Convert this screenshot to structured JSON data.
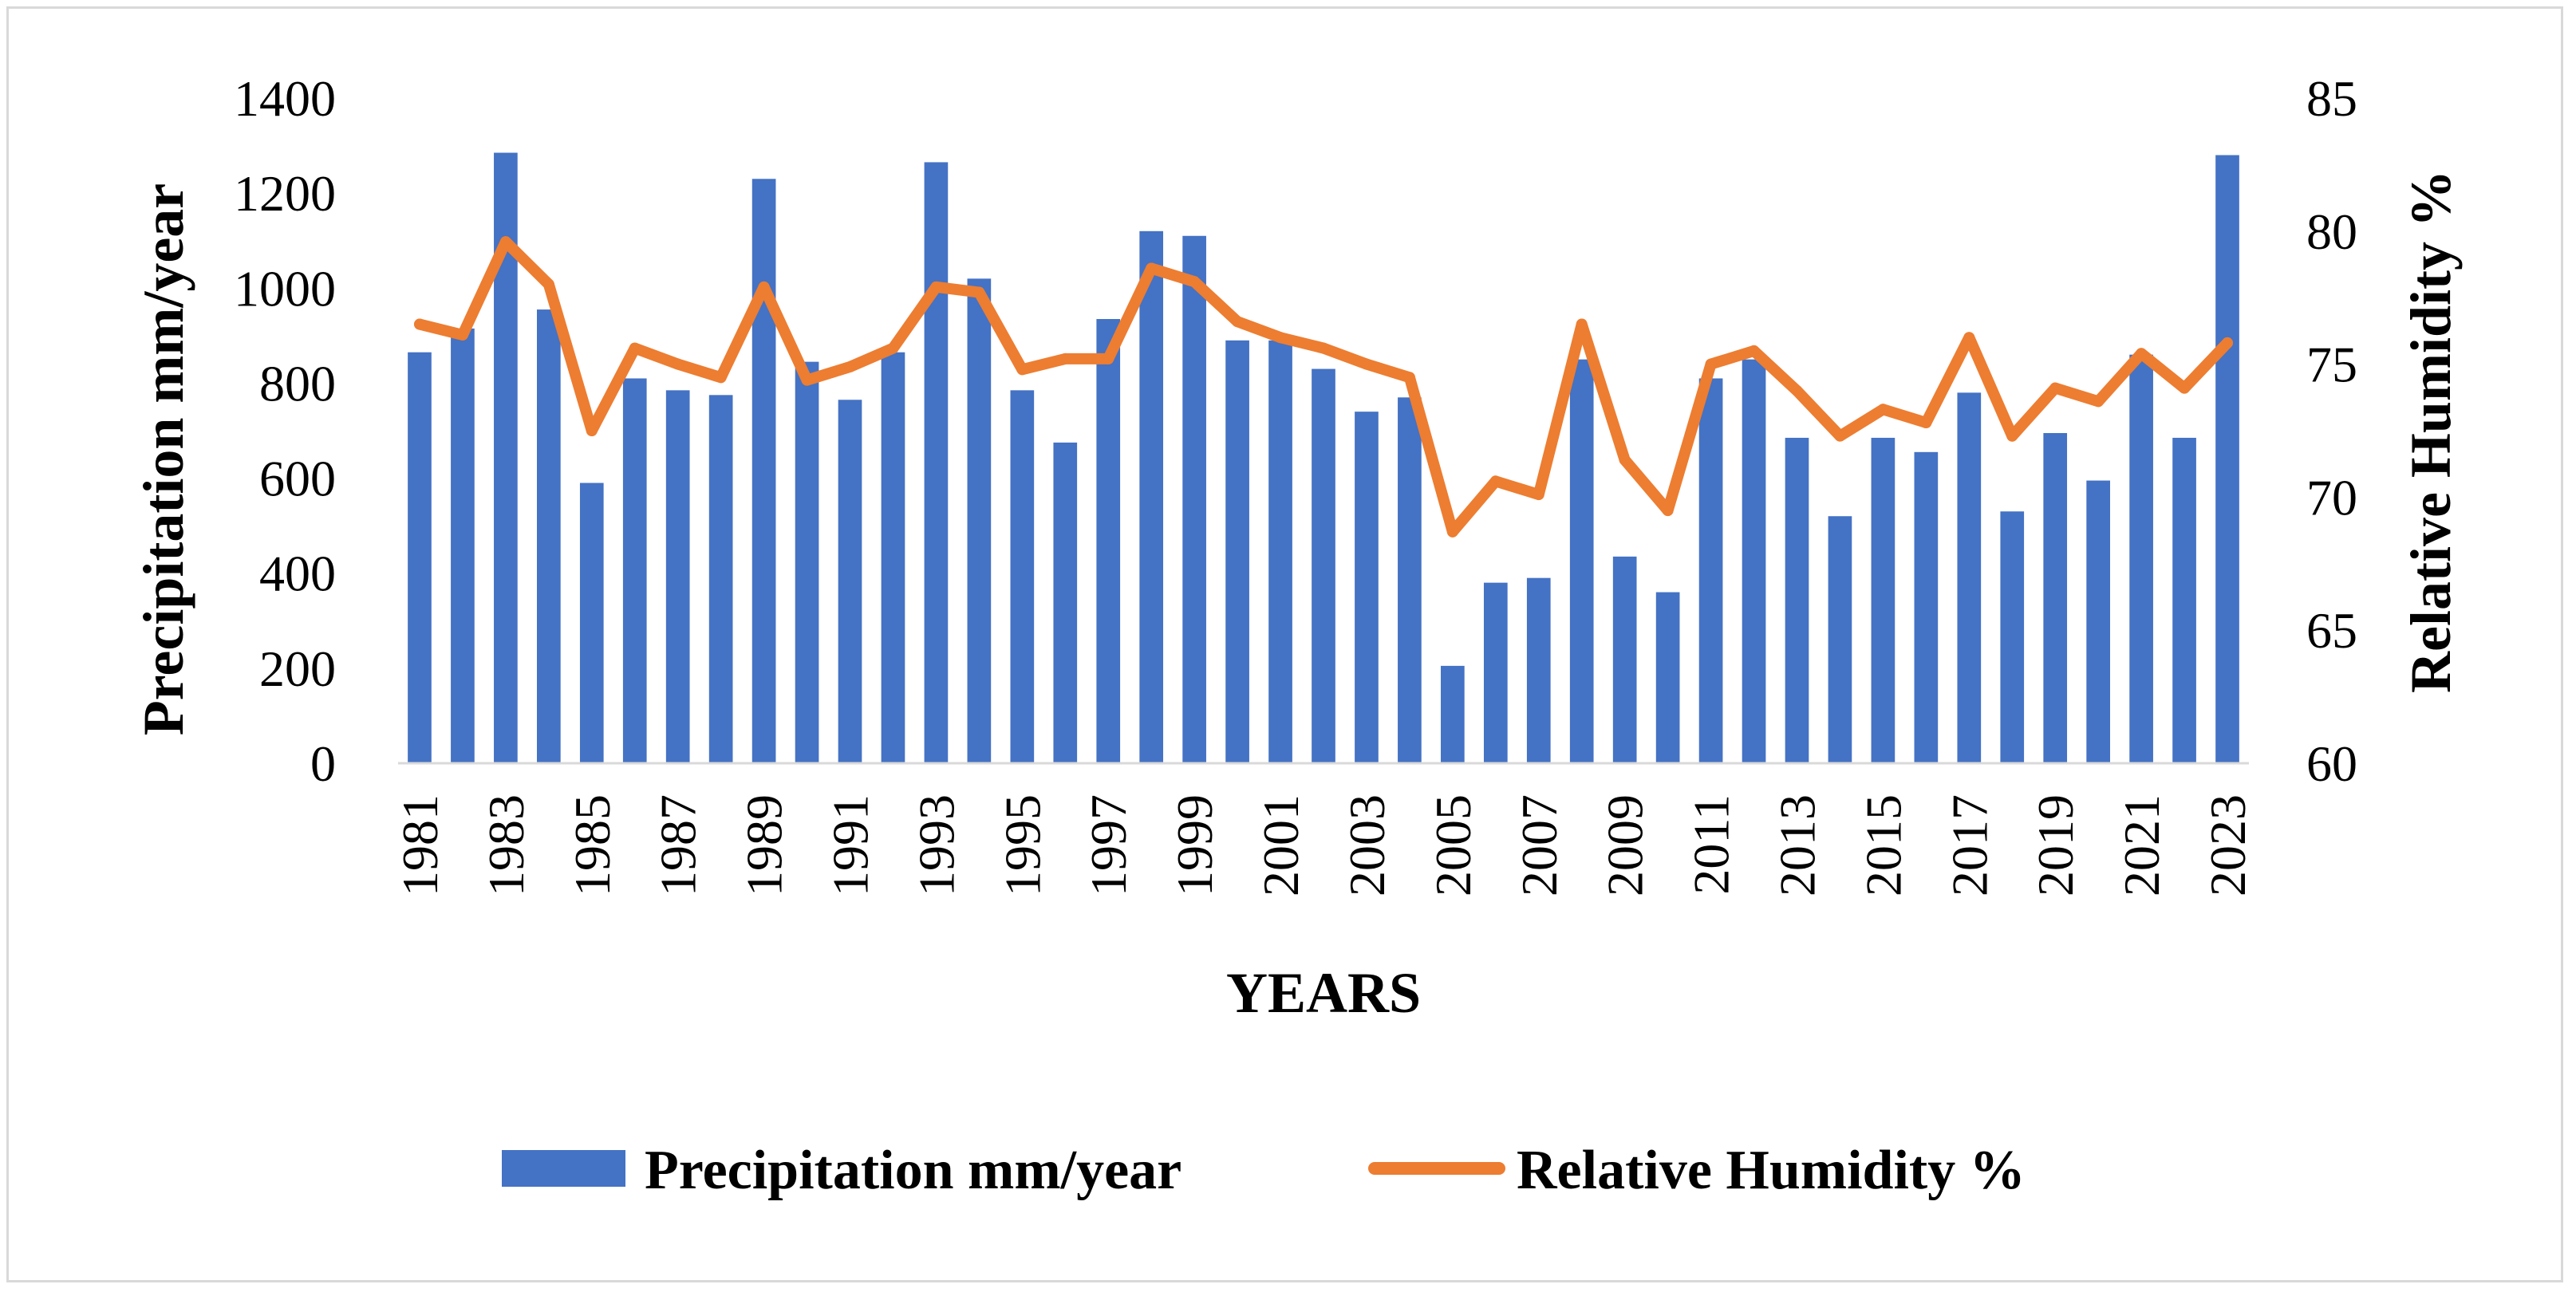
{
  "chart_data": {
    "type": "bar+line",
    "title": "",
    "xlabel": "YEARS",
    "ylabel": "Precipitation mm/year",
    "y2label": "Relative Humidity %",
    "ylim": [
      0,
      1400
    ],
    "y2lim": [
      60,
      85
    ],
    "yticks": [
      "0",
      "200",
      "400",
      "600",
      "800",
      "1000",
      "1200",
      "1400"
    ],
    "y2ticks": [
      "60",
      "65",
      "70",
      "75",
      "80",
      "85"
    ],
    "x": [
      1981,
      1982,
      1983,
      1984,
      1985,
      1986,
      1987,
      1988,
      1989,
      1990,
      1991,
      1992,
      1993,
      1994,
      1995,
      1996,
      1997,
      1998,
      1999,
      2000,
      2001,
      2002,
      2003,
      2004,
      2005,
      2006,
      2007,
      2008,
      2009,
      2010,
      2011,
      2012,
      2013,
      2014,
      2015,
      2016,
      2017,
      2018,
      2019,
      2020,
      2021,
      2022,
      2023
    ],
    "xticks_shown": [
      "1981",
      "1983",
      "1985",
      "1987",
      "1989",
      "1991",
      "1993",
      "1995",
      "1997",
      "1999",
      "2001",
      "2003",
      "2005",
      "2007",
      "2009",
      "2011",
      "2013",
      "2015",
      "2017",
      "2019",
      "2021",
      "2023"
    ],
    "grid": false,
    "legend_position": "bottom",
    "series": [
      {
        "name": "Precipitation mm/year",
        "type": "bar",
        "axis": "left",
        "color": "#4472c4",
        "values": [
          865,
          915,
          1285,
          955,
          590,
          810,
          785,
          775,
          1230,
          845,
          765,
          865,
          1265,
          1020,
          785,
          675,
          935,
          1120,
          1110,
          890,
          890,
          830,
          740,
          770,
          205,
          380,
          390,
          850,
          435,
          360,
          810,
          850,
          685,
          520,
          685,
          655,
          780,
          530,
          695,
          595,
          860,
          685,
          1280
        ]
      },
      {
        "name": "Relative Humidity %",
        "type": "line",
        "axis": "right",
        "color": "#ed7d31",
        "values": [
          76.5,
          76.1,
          79.6,
          78.0,
          72.5,
          75.6,
          75.0,
          74.5,
          77.9,
          74.4,
          74.9,
          75.6,
          77.9,
          77.7,
          74.8,
          75.2,
          75.2,
          78.6,
          78.1,
          76.6,
          76.0,
          75.6,
          75.0,
          74.5,
          68.7,
          70.6,
          70.1,
          76.5,
          71.4,
          69.5,
          75.0,
          75.5,
          74.0,
          72.3,
          73.3,
          72.8,
          76.0,
          72.3,
          74.1,
          73.6,
          75.4,
          74.1,
          75.8
        ]
      }
    ]
  }
}
